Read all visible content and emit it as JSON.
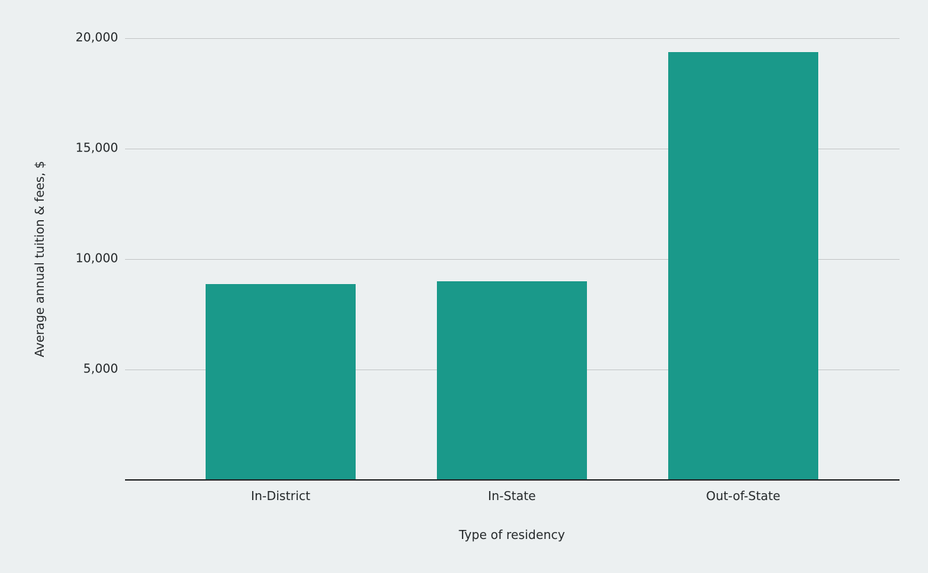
{
  "chart_data": {
    "type": "bar",
    "title": "",
    "categories": [
      "In-District",
      "In-State",
      "Out-of-State"
    ],
    "values": [
      8870,
      8990,
      19370
    ],
    "xlabel": "Type of residency",
    "ylabel": "Average annual tuition & fees, $",
    "ylim": [
      0,
      20000
    ],
    "yticks": [
      {
        "value": 5000,
        "label": "5,000"
      },
      {
        "value": 10000,
        "label": "10,000"
      },
      {
        "value": 15000,
        "label": "15,000"
      },
      {
        "value": 20000,
        "label": "20,000"
      }
    ],
    "grid": true,
    "legend": "none",
    "colors": {
      "bar": "#1a998a",
      "background": "#ecf0f1",
      "gridline": "#c5c8c9",
      "axis_line": "#26282a",
      "text": "#232729"
    }
  }
}
